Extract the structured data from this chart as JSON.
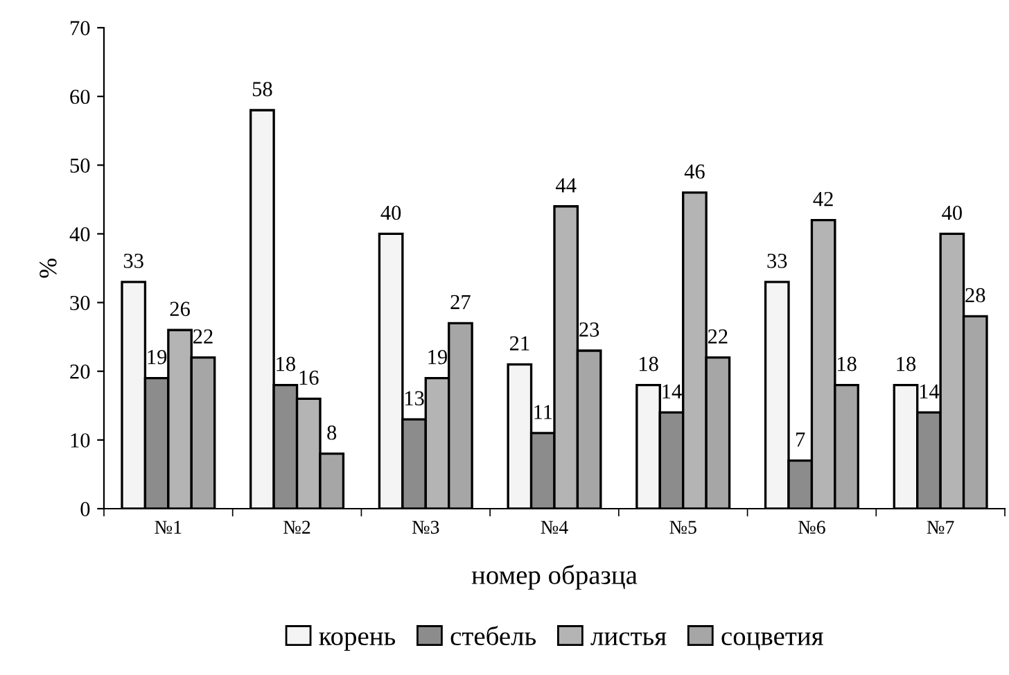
{
  "chart_data": {
    "type": "bar",
    "xlabel": "номер образца",
    "ylabel": "%",
    "categories": [
      "№1",
      "№2",
      "№3",
      "№4",
      "№5",
      "№6",
      "№7"
    ],
    "series": [
      {
        "name": "корень",
        "color": "#f4f4f4",
        "values": [
          33,
          58,
          40,
          21,
          18,
          33,
          18
        ]
      },
      {
        "name": "стебель",
        "color": "#8c8c8c",
        "values": [
          19,
          18,
          13,
          11,
          14,
          7,
          14
        ]
      },
      {
        "name": "листья",
        "color": "#b4b4b4",
        "values": [
          26,
          16,
          19,
          44,
          46,
          42,
          40
        ]
      },
      {
        "name": "соцветия",
        "color": "#a6a6a6",
        "values": [
          22,
          8,
          27,
          23,
          22,
          18,
          28
        ]
      }
    ],
    "ylim": [
      0,
      70
    ],
    "yticks": [
      0,
      10,
      20,
      30,
      40,
      50,
      60,
      70
    ],
    "data_labels": true,
    "grid": false,
    "legend": "bottom"
  }
}
